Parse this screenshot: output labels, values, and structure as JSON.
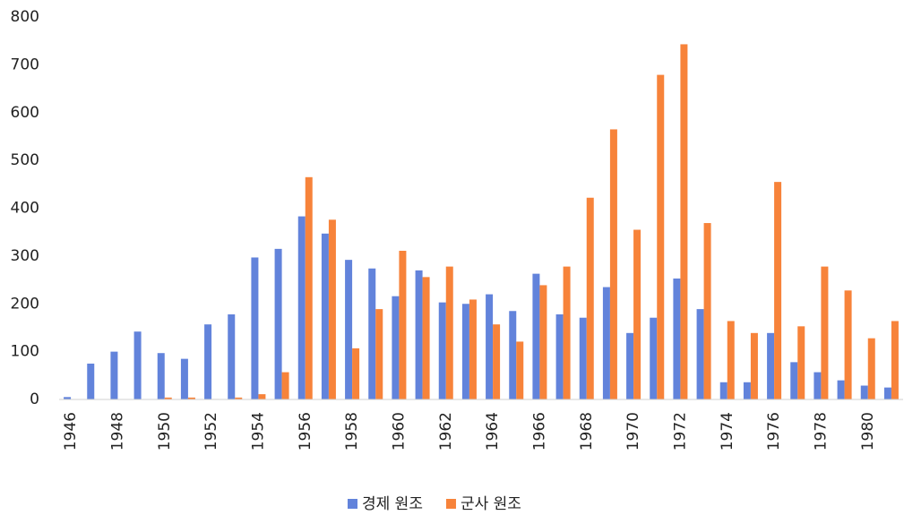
{
  "chart_data": {
    "type": "bar",
    "categories": [
      "1946",
      null,
      "1948",
      null,
      "1950",
      null,
      "1952",
      null,
      "1954",
      null,
      "1956",
      null,
      "1958",
      null,
      "1960",
      null,
      "1962",
      null,
      "1964",
      null,
      "1966",
      null,
      "1968",
      null,
      "1970",
      null,
      "1972",
      null,
      "1974",
      null,
      "1976",
      null,
      "1978",
      null,
      "1980",
      null
    ],
    "series": [
      {
        "name": "경제 원조",
        "color": "#6283db",
        "values": [
          5,
          75,
          100,
          142,
          97,
          85,
          157,
          178,
          297,
          315,
          383,
          347,
          292,
          274,
          216,
          270,
          203,
          200,
          220,
          185,
          263,
          178,
          171,
          235,
          139,
          171,
          253,
          189,
          36,
          36,
          139,
          78,
          57,
          40,
          29,
          25
        ]
      },
      {
        "name": "군사 원조",
        "color": "#f7833a",
        "values": [
          0,
          0,
          0,
          0,
          4,
          4,
          1,
          4,
          11,
          57,
          465,
          376,
          107,
          189,
          311,
          256,
          278,
          209,
          157,
          121,
          239,
          278,
          422,
          565,
          355,
          679,
          743,
          369,
          164,
          139,
          455,
          153,
          278,
          228,
          128,
          164
        ]
      }
    ],
    "ylim": [
      0,
      800
    ],
    "yticks": [
      0,
      100,
      200,
      300,
      400,
      500,
      600,
      700,
      800
    ],
    "grid": false,
    "legend": "bottom"
  }
}
